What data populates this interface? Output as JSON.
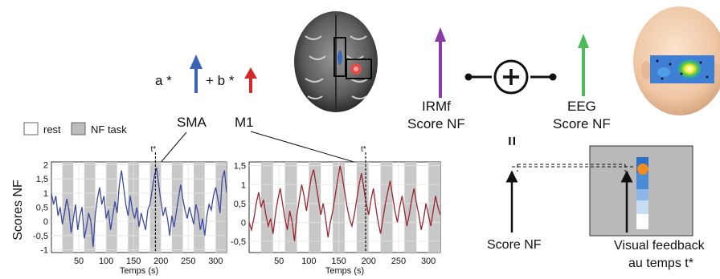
{
  "formula": {
    "a_prefix": "a *",
    "b_prefix": "+ b *"
  },
  "regions": {
    "sma": "SMA",
    "m1": "M1"
  },
  "legend": {
    "rest": "rest",
    "task": "NF task"
  },
  "fmri": {
    "line1": "IRMf",
    "line2": "Score NF"
  },
  "eeg": {
    "line1": "EEG",
    "line2": "Score NF"
  },
  "equals": "=",
  "feedback": {
    "score_label": "Score NF",
    "visual_line1": "Visual feedback",
    "visual_line2": "au temps t*"
  },
  "colors": {
    "sma": "#3a64b8",
    "m1": "#d32a2a",
    "fmri": "#8a3aa8",
    "eeg": "#4cbb5a",
    "trace_left": "#3d4aa0",
    "trace_right": "#9b2630",
    "task_band": "#c8c8c8",
    "marker": "#f08c1e"
  },
  "chart_data": [
    {
      "type": "line",
      "ylabel": "Scores NF",
      "xlabel": "Temps (s)",
      "tmarker_label": "t*",
      "tmarker": 190,
      "xlim": [
        0,
        320
      ],
      "ylim": [
        -1.1,
        2.1
      ],
      "xticks": [
        50,
        100,
        150,
        200,
        250,
        300
      ],
      "yticks": [
        2,
        1.5,
        1,
        0.5,
        0,
        -0.5,
        -1
      ],
      "ytick_labels": [
        "2",
        "1,5",
        "1",
        "0,5",
        "0",
        "-0,5",
        "-1"
      ],
      "task_blocks": [
        [
          20,
          40
        ],
        [
          60,
          80
        ],
        [
          100,
          120
        ],
        [
          140,
          160
        ],
        [
          180,
          200
        ],
        [
          220,
          240
        ],
        [
          260,
          280
        ],
        [
          300,
          320
        ]
      ],
      "series": [
        {
          "x": [
            0,
            4,
            8,
            12,
            16,
            20,
            24,
            28,
            32,
            36,
            40,
            44,
            48,
            52,
            56,
            60,
            64,
            68,
            72,
            76,
            80,
            84,
            88,
            92,
            96,
            100,
            104,
            108,
            112,
            116,
            120,
            124,
            128,
            132,
            136,
            140,
            144,
            148,
            152,
            156,
            160,
            164,
            168,
            172,
            176,
            180,
            184,
            188,
            192,
            196,
            200,
            204,
            208,
            212,
            216,
            220,
            224,
            228,
            232,
            236,
            240,
            244,
            248,
            252,
            256,
            260,
            264,
            268,
            272,
            276,
            280,
            284,
            288,
            292,
            296,
            300,
            304,
            308,
            312,
            316,
            320
          ],
          "values": [
            1.0,
            0.6,
            0.9,
            0.2,
            0.5,
            -0.1,
            0.3,
            0.8,
            0.4,
            -0.4,
            0.1,
            0.6,
            -0.3,
            0.2,
            0.5,
            -0.6,
            -0.2,
            0.3,
            0.0,
            -0.9,
            0.2,
            0.8,
            1.2,
            0.6,
            0.9,
            0.1,
            0.4,
            -0.3,
            0.2,
            0.7,
            0.3,
            1.3,
            1.8,
            1.2,
            0.6,
            0.2,
            0.9,
            0.4,
            0.1,
            0.5,
            -0.2,
            0.3,
            0.0,
            -0.3,
            0.4,
            0.6,
            1.1,
            1.6,
            1.9,
            1.3,
            0.7,
            0.2,
            0.5,
            0.1,
            -0.5,
            0.2,
            -0.2,
            0.3,
            0.8,
            1.3,
            0.8,
            0.4,
            0.1,
            0.5,
            0.2,
            -0.1,
            0.6,
            0.3,
            -0.3,
            0.1,
            -0.5,
            0.2,
            0.6,
            0.4,
            0.9,
            1.2,
            0.8,
            0.3,
            1.5,
            1.8,
            1.0
          ]
        }
      ]
    },
    {
      "type": "line",
      "xlabel": "Temps (s)",
      "tmarker_label": "t*",
      "tmarker": 195,
      "xlim": [
        0,
        320
      ],
      "ylim": [
        -0.8,
        1.6
      ],
      "xticks": [
        50,
        100,
        150,
        200,
        250,
        300
      ],
      "yticks": [
        1.5,
        1,
        0.5,
        0,
        -0.5
      ],
      "ytick_labels": [
        "1,5",
        "1",
        "0,5",
        "0",
        "-0,5"
      ],
      "task_blocks": [
        [
          20,
          40
        ],
        [
          60,
          80
        ],
        [
          100,
          120
        ],
        [
          140,
          160
        ],
        [
          180,
          200
        ],
        [
          220,
          240
        ],
        [
          260,
          280
        ],
        [
          300,
          320
        ]
      ],
      "series": [
        {
          "x": [
            0,
            4,
            8,
            12,
            16,
            20,
            24,
            28,
            32,
            36,
            40,
            44,
            48,
            52,
            56,
            60,
            64,
            68,
            72,
            76,
            80,
            84,
            88,
            92,
            96,
            100,
            104,
            108,
            112,
            116,
            120,
            124,
            128,
            132,
            136,
            140,
            144,
            148,
            152,
            156,
            160,
            164,
            168,
            172,
            176,
            180,
            184,
            188,
            192,
            196,
            200,
            204,
            208,
            212,
            216,
            220,
            224,
            228,
            232,
            236,
            240,
            244,
            248,
            252,
            256,
            260,
            264,
            268,
            272,
            276,
            280,
            284,
            288,
            292,
            296,
            300,
            304,
            308,
            312,
            316,
            320
          ],
          "values": [
            0.0,
            -0.2,
            0.1,
            0.5,
            0.8,
            0.4,
            0.6,
            0.2,
            -0.1,
            0.1,
            -0.3,
            0.2,
            0.6,
            0.9,
            0.5,
            0.1,
            -0.2,
            0.3,
            0.0,
            -0.5,
            0.2,
            0.6,
            1.0,
            0.7,
            0.3,
            0.8,
            1.2,
            1.4,
            1.0,
            0.6,
            0.2,
            0.5,
            0.1,
            -0.4,
            0.0,
            0.3,
            0.7,
            1.1,
            1.5,
            1.2,
            0.8,
            0.4,
            0.1,
            -0.1,
            0.2,
            0.6,
            1.0,
            1.3,
            0.9,
            0.5,
            0.2,
            0.6,
            0.9,
            0.4,
            0.0,
            -0.3,
            0.1,
            0.5,
            0.8,
            1.1,
            0.7,
            0.3,
            0.0,
            0.4,
            0.7,
            0.3,
            -0.1,
            0.2,
            0.6,
            0.9,
            0.5,
            0.2,
            -0.2,
            0.1,
            0.5,
            0.2,
            -0.1,
            0.3,
            0.7,
            0.4,
            0.2
          ]
        }
      ]
    }
  ]
}
